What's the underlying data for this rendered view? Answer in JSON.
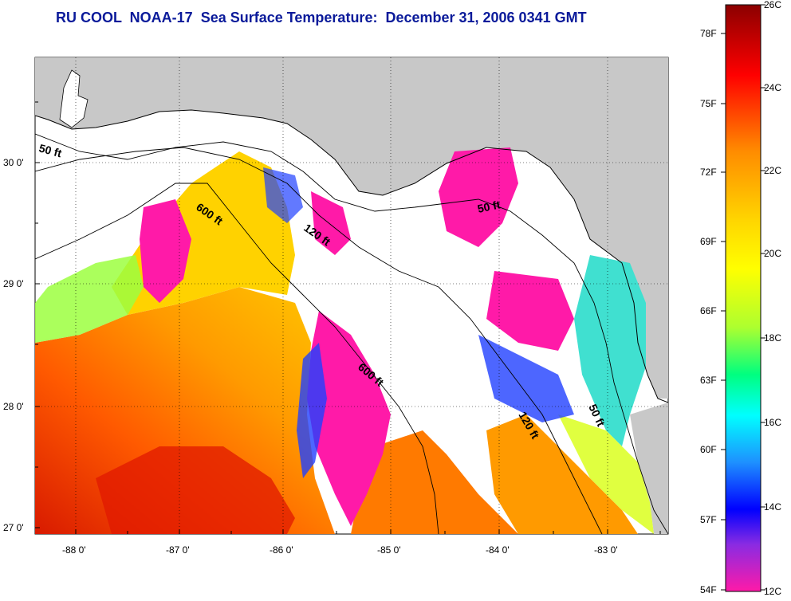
{
  "title": "RU COOL  NOAA-17  Sea Surface Temperature:  December 31, 2006 0341 GMT",
  "map": {
    "lon_labels": [
      "-88 0'",
      "-87 0'",
      "-86 0'",
      "-85 0'",
      "-84 0'",
      "-83 0'"
    ],
    "lat_labels": [
      "30 0'",
      "29 0'",
      "28 0'",
      "27 0'"
    ],
    "isobath_labels": [
      "50 ft",
      "600 ft",
      "120 ft",
      "50 ft",
      "600 ft",
      "120 ft",
      "50 ft"
    ],
    "colors": {
      "land": "#c8c8c8",
      "no_data": "#ffffff",
      "coastline": "#000000"
    }
  },
  "colorbar": {
    "celsius_labels": [
      "26C",
      "24C",
      "22C",
      "20C",
      "18C",
      "16C",
      "14C",
      "12C"
    ],
    "fahrenheit_labels": [
      "78F",
      "75F",
      "72F",
      "69F",
      "66F",
      "63F",
      "60F",
      "57F",
      "54F"
    ],
    "gradient_colors": [
      "#8b0000",
      "#ff0000",
      "#ff8c00",
      "#ffd700",
      "#ffff00",
      "#adff2f",
      "#00ff7f",
      "#00ffff",
      "#1e90ff",
      "#0000ff",
      "#8a2be2",
      "#ff1aa8"
    ]
  }
}
